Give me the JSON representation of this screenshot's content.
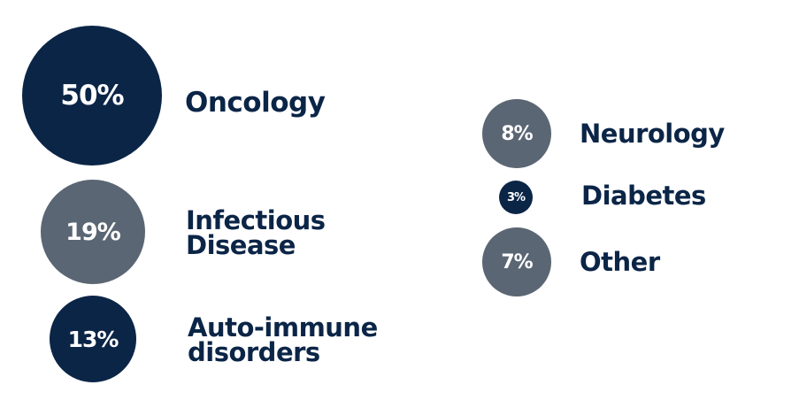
{
  "chart_data": {
    "type": "bubble",
    "colors": {
      "dark": "#0b2547",
      "slate": "#5a6673"
    },
    "categories": [
      {
        "value_label": "50%",
        "value": 50,
        "label_lines": [
          "Oncology"
        ],
        "color": "dark"
      },
      {
        "value_label": "19%",
        "value": 19,
        "label_lines": [
          "Infectious",
          "Disease"
        ],
        "color": "slate"
      },
      {
        "value_label": "13%",
        "value": 13,
        "label_lines": [
          "Auto-immune",
          "disorders"
        ],
        "color": "dark"
      },
      {
        "value_label": "8%",
        "value": 8,
        "label_lines": [
          "Neurology"
        ],
        "color": "slate"
      },
      {
        "value_label": "3%",
        "value": 3,
        "label_lines": [
          "Diabetes"
        ],
        "color": "dark"
      },
      {
        "value_label": "7%",
        "value": 7,
        "label_lines": [
          "Other"
        ],
        "color": "slate"
      }
    ]
  }
}
